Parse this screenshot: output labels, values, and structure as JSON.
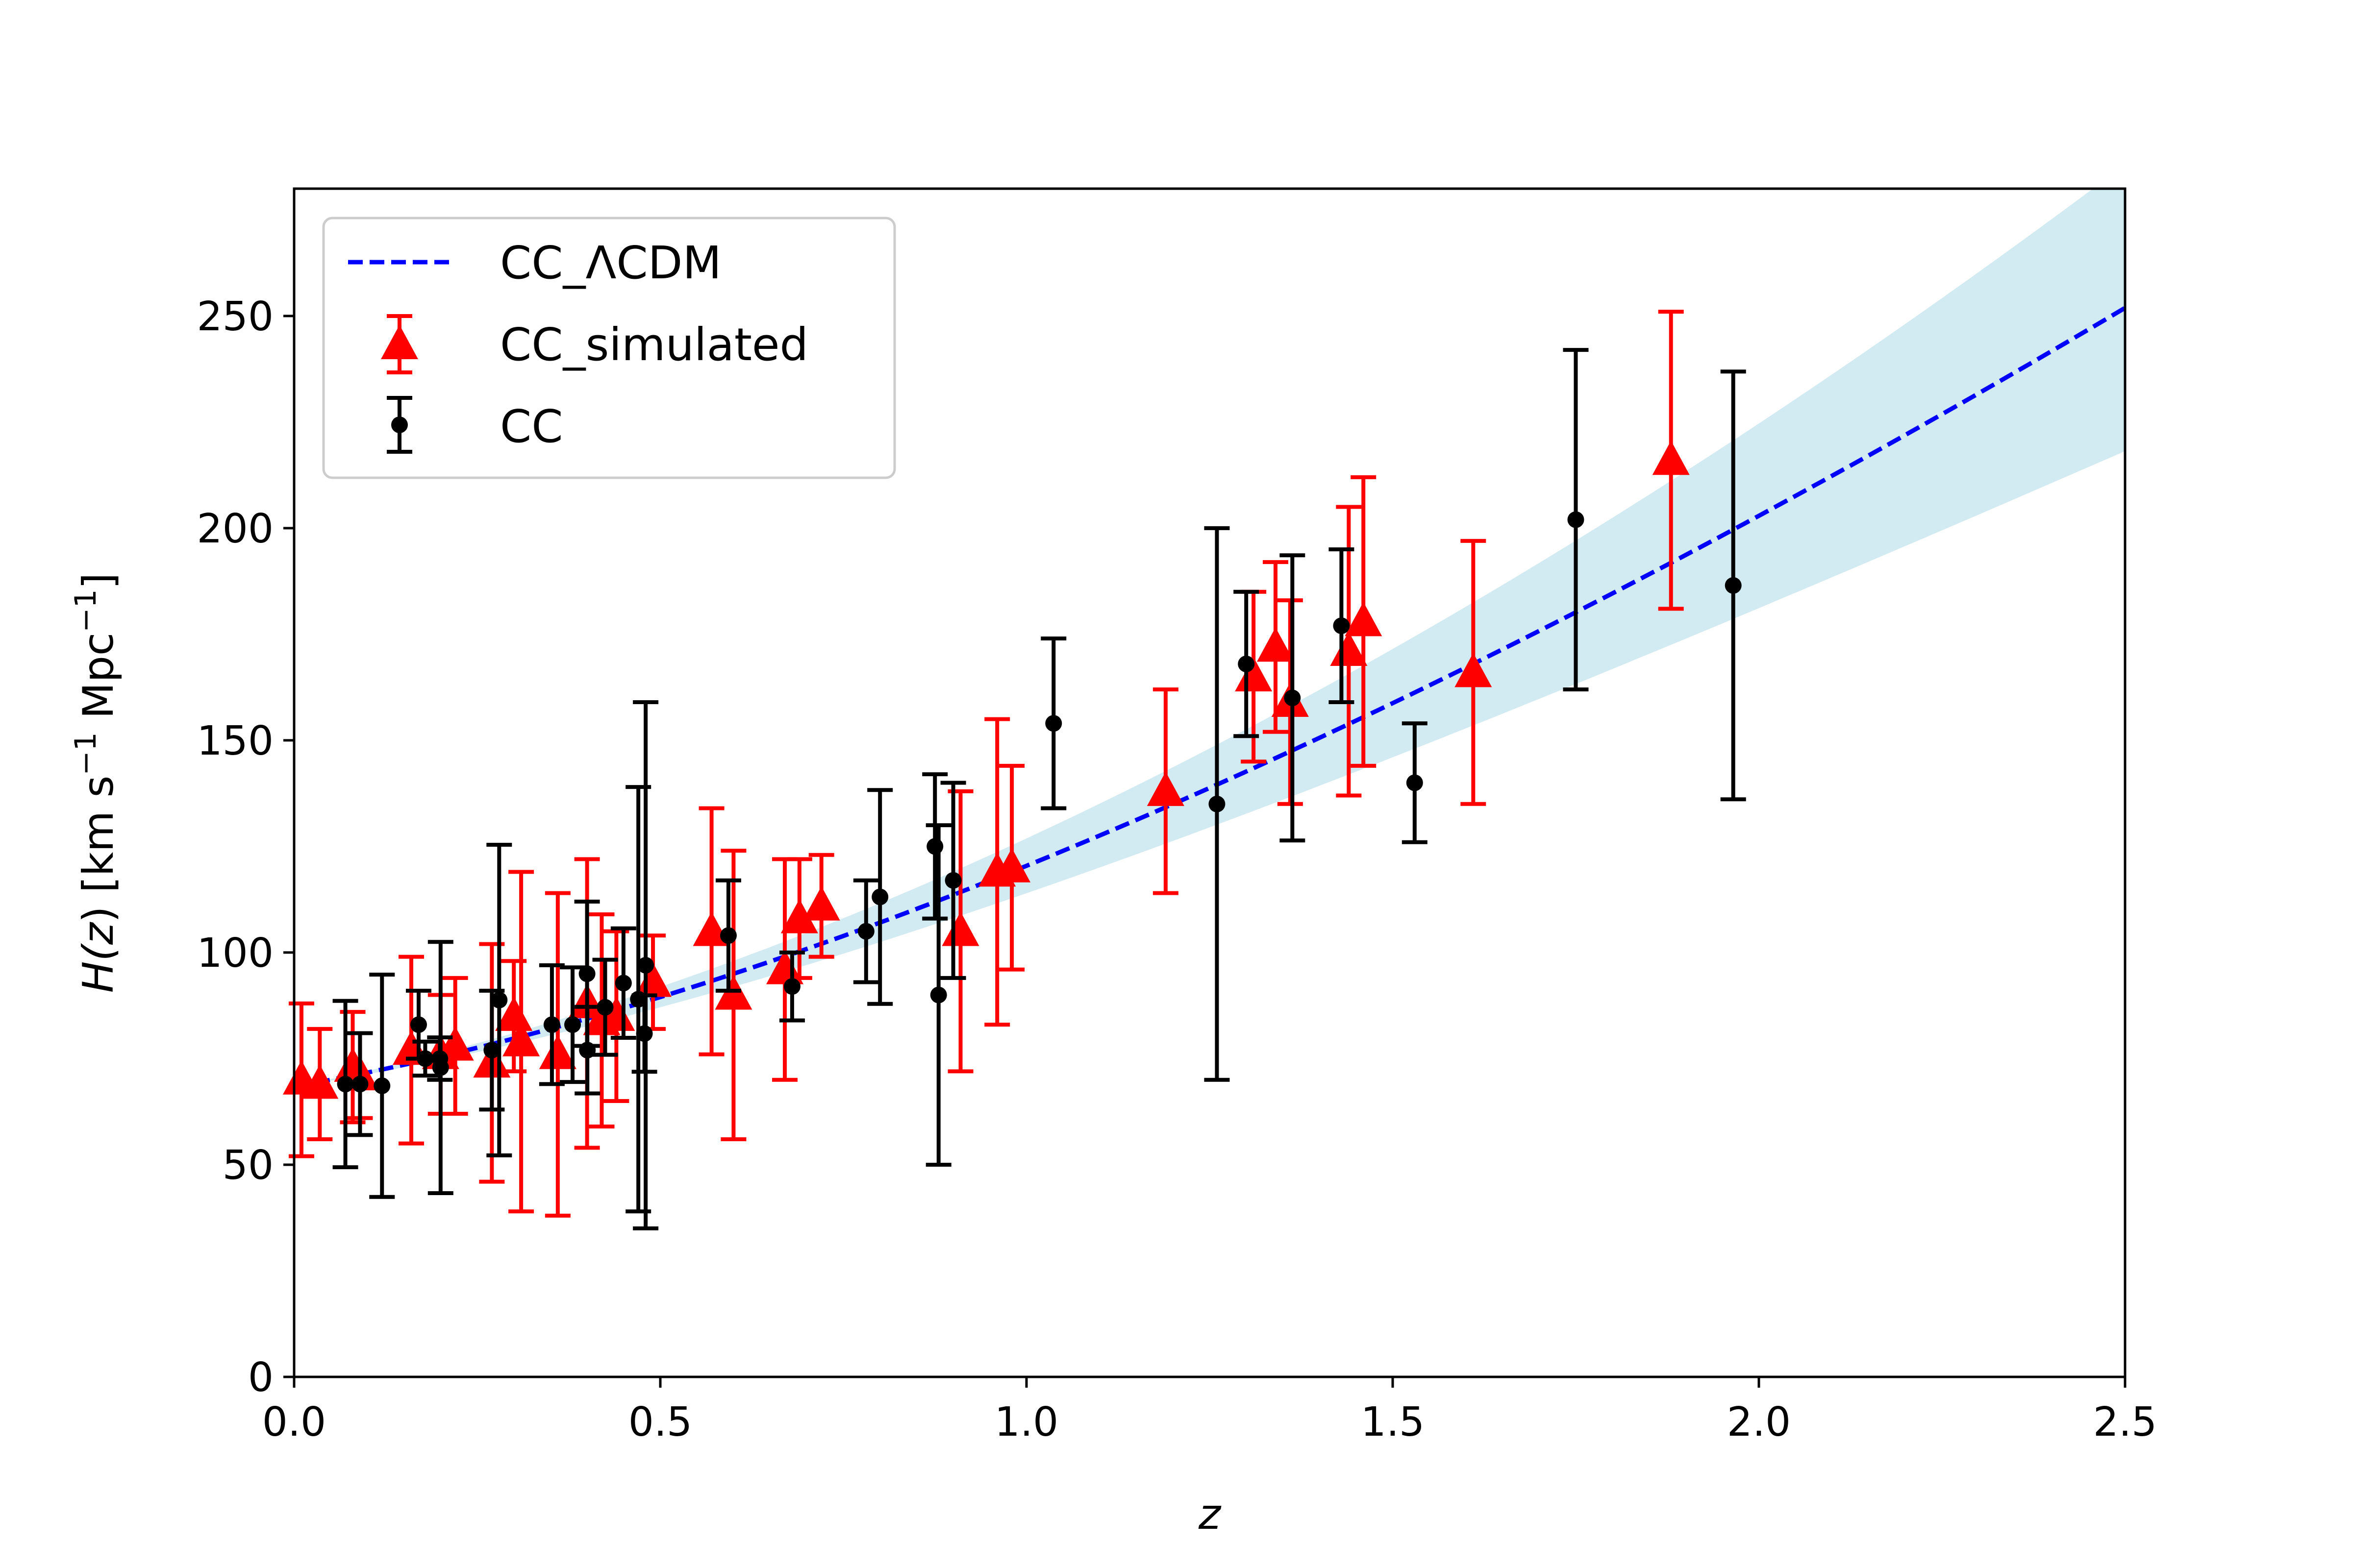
{
  "chart_data": {
    "type": "scatter",
    "title": "",
    "xlabel": "z",
    "ylabel_parts": {
      "pre": "H(",
      "var": "z",
      "post": ") [km s",
      "sup1": "−1",
      "mid": " Mpc",
      "sup2": "−1",
      "end": "]"
    },
    "xlim": [
      0,
      2.5
    ],
    "ylim": [
      0,
      280
    ],
    "xticks": [
      {
        "v": 0.0,
        "label": "0.0"
      },
      {
        "v": 0.5,
        "label": "0.5"
      },
      {
        "v": 1.0,
        "label": "1.0"
      },
      {
        "v": 1.5,
        "label": "1.5"
      },
      {
        "v": 2.0,
        "label": "2.0"
      },
      {
        "v": 2.5,
        "label": "2.5"
      }
    ],
    "yticks": [
      {
        "v": 0,
        "label": "0"
      },
      {
        "v": 50,
        "label": "50"
      },
      {
        "v": 100,
        "label": "100"
      },
      {
        "v": 150,
        "label": "150"
      },
      {
        "v": 200,
        "label": "200"
      },
      {
        "v": 250,
        "label": "250"
      }
    ],
    "grid": false,
    "legend_position": "top-left",
    "colors": {
      "model": "#0000ff",
      "band": "#add8e6",
      "simulated": "#ff0000",
      "cc": "#000000"
    },
    "series": [
      {
        "name": "CC_ΛCDM",
        "kind": "line",
        "style": "dashed",
        "H0": 68.4,
        "Om": 0.3,
        "band_sigma_frac": 0.134
      },
      {
        "name": "CC_simulated",
        "kind": "errorbar",
        "marker": "triangle",
        "points": [
          {
            "x": 0.01,
            "y": 70,
            "err": 18
          },
          {
            "x": 0.035,
            "y": 69,
            "err": 13
          },
          {
            "x": 0.08,
            "y": 73,
            "err": 13
          },
          {
            "x": 0.09,
            "y": 71,
            "err": 10
          },
          {
            "x": 0.16,
            "y": 77,
            "err": 22
          },
          {
            "x": 0.2,
            "y": 76,
            "err": 14
          },
          {
            "x": 0.22,
            "y": 78,
            "err": 16
          },
          {
            "x": 0.27,
            "y": 74,
            "err": 28
          },
          {
            "x": 0.3,
            "y": 85,
            "err": 13
          },
          {
            "x": 0.31,
            "y": 79,
            "err": 40
          },
          {
            "x": 0.36,
            "y": 76,
            "err": 38
          },
          {
            "x": 0.4,
            "y": 88,
            "err": 34
          },
          {
            "x": 0.42,
            "y": 84,
            "err": 25
          },
          {
            "x": 0.44,
            "y": 85,
            "err": 20
          },
          {
            "x": 0.49,
            "y": 93,
            "err": 11
          },
          {
            "x": 0.57,
            "y": 105,
            "err": 29
          },
          {
            "x": 0.6,
            "y": 90,
            "err": 34
          },
          {
            "x": 0.67,
            "y": 96,
            "err": 26
          },
          {
            "x": 0.69,
            "y": 108,
            "err": 14
          },
          {
            "x": 0.72,
            "y": 111,
            "err": 12
          },
          {
            "x": 0.91,
            "y": 105,
            "err": 33
          },
          {
            "x": 0.96,
            "y": 119,
            "err": 36
          },
          {
            "x": 0.98,
            "y": 120,
            "err": 24
          },
          {
            "x": 1.19,
            "y": 138,
            "err": 24
          },
          {
            "x": 1.31,
            "y": 165,
            "err": 20
          },
          {
            "x": 1.34,
            "y": 172,
            "err": 20
          },
          {
            "x": 1.36,
            "y": 159,
            "err": 24
          },
          {
            "x": 1.44,
            "y": 171,
            "err": 34
          },
          {
            "x": 1.46,
            "y": 178,
            "err": 34
          },
          {
            "x": 1.61,
            "y": 166,
            "err": 31
          },
          {
            "x": 1.88,
            "y": 216,
            "err": 35
          }
        ]
      },
      {
        "name": "CC",
        "kind": "errorbar",
        "marker": "circle",
        "points": [
          {
            "x": 0.07,
            "y": 69,
            "err": 19.6
          },
          {
            "x": 0.09,
            "y": 69,
            "err": 12
          },
          {
            "x": 0.12,
            "y": 68.6,
            "err": 26.2
          },
          {
            "x": 0.17,
            "y": 83,
            "err": 8
          },
          {
            "x": 0.179,
            "y": 75,
            "err": 4
          },
          {
            "x": 0.199,
            "y": 75,
            "err": 5
          },
          {
            "x": 0.2,
            "y": 72.9,
            "err": 29.6
          },
          {
            "x": 0.27,
            "y": 77,
            "err": 14
          },
          {
            "x": 0.28,
            "y": 88.8,
            "err": 36.6
          },
          {
            "x": 0.352,
            "y": 83,
            "err": 14
          },
          {
            "x": 0.3802,
            "y": 83,
            "err": 13.5
          },
          {
            "x": 0.4,
            "y": 95,
            "err": 17
          },
          {
            "x": 0.4004,
            "y": 77,
            "err": 10.2
          },
          {
            "x": 0.4247,
            "y": 87.1,
            "err": 11.2
          },
          {
            "x": 0.4497,
            "y": 92.8,
            "err": 12.9
          },
          {
            "x": 0.47,
            "y": 89,
            "err": 50
          },
          {
            "x": 0.4783,
            "y": 80.9,
            "err": 9
          },
          {
            "x": 0.48,
            "y": 97,
            "err": 62
          },
          {
            "x": 0.593,
            "y": 104,
            "err": 13
          },
          {
            "x": 0.68,
            "y": 92,
            "err": 8
          },
          {
            "x": 0.781,
            "y": 105,
            "err": 12
          },
          {
            "x": 0.8,
            "y": 113.1,
            "err": 25.2
          },
          {
            "x": 0.875,
            "y": 125,
            "err": 17
          },
          {
            "x": 0.88,
            "y": 90,
            "err": 40
          },
          {
            "x": 0.9,
            "y": 117,
            "err": 23
          },
          {
            "x": 1.037,
            "y": 154,
            "err": 20
          },
          {
            "x": 1.26,
            "y": 135,
            "err": 65
          },
          {
            "x": 1.3,
            "y": 168,
            "err": 17
          },
          {
            "x": 1.363,
            "y": 160,
            "err": 33.6
          },
          {
            "x": 1.43,
            "y": 177,
            "err": 18
          },
          {
            "x": 1.53,
            "y": 140,
            "err": 14
          },
          {
            "x": 1.75,
            "y": 202,
            "err": 40
          },
          {
            "x": 1.965,
            "y": 186.5,
            "err": 50.4
          }
        ]
      }
    ]
  }
}
